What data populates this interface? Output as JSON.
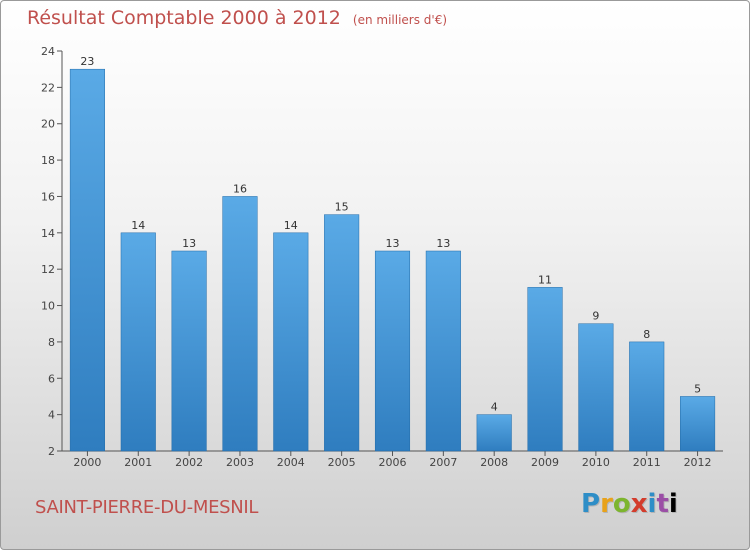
{
  "header": {
    "title": "Résultat Comptable 2000 à 2012",
    "subtitle": "(en milliers d'€)"
  },
  "footer": {
    "commune": "SAINT-PIERRE-DU-MESNIL",
    "logo_letters": [
      "P",
      "r",
      "o",
      "x",
      "i",
      "t",
      "i"
    ],
    "logo_text": "Proxiti"
  },
  "colors": {
    "title": "#c0504d",
    "bar_top": "#5aaae6",
    "bar_bottom": "#2f7dbf",
    "axis": "#555555"
  },
  "chart_data": {
    "type": "bar",
    "title": "Résultat Comptable 2000 à 2012",
    "subtitle": "(en milliers d'€)",
    "categories": [
      "2000",
      "2001",
      "2002",
      "2003",
      "2004",
      "2005",
      "2006",
      "2007",
      "2008",
      "2009",
      "2010",
      "2011",
      "2012"
    ],
    "values": [
      23,
      14,
      13,
      16,
      14,
      15,
      13,
      13,
      4,
      11,
      9,
      8,
      5
    ],
    "ylim": [
      2,
      24
    ],
    "yticks": [
      2,
      4,
      6,
      8,
      10,
      12,
      14,
      16,
      18,
      20,
      22,
      24
    ],
    "grid": false,
    "legend": "none"
  }
}
